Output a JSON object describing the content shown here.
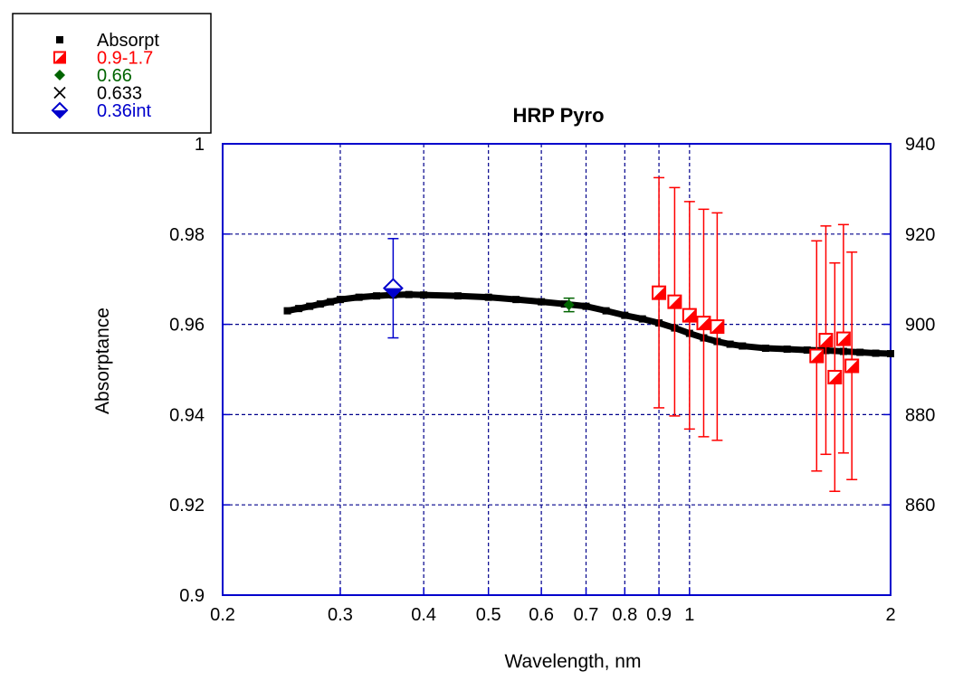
{
  "chart_data": {
    "type": "scatter",
    "title": "HRP Pyro",
    "xlabel": "Wavelength, nm",
    "ylabel": "Absorptance",
    "xscale": "log",
    "xlim": [
      0.2,
      2
    ],
    "ylim": [
      0.9,
      1
    ],
    "y2lim": [
      840,
      940
    ],
    "x_ticks": [
      "0.2",
      "0.3",
      "0.4",
      "0.5",
      "0.6",
      "0.7",
      "0.8",
      "0.9",
      "1",
      "2"
    ],
    "y_ticks": [
      "0.9",
      "0.92",
      "0.94",
      "0.96",
      "0.98",
      "1"
    ],
    "y2_ticks": [
      "860",
      "880",
      "900",
      "920",
      "940"
    ],
    "grid": true,
    "legend_position": "top-left, outside plot",
    "series": [
      {
        "name": "Absorpt",
        "color": "#000000",
        "marker": "small-square",
        "x": [
          0.25,
          0.26,
          0.27,
          0.28,
          0.29,
          0.3,
          0.32,
          0.34,
          0.36,
          0.38,
          0.4,
          0.45,
          0.5,
          0.55,
          0.6,
          0.65,
          0.7,
          0.75,
          0.8,
          0.85,
          0.9,
          0.95,
          1.0,
          1.05,
          1.1,
          1.15,
          1.2,
          1.3,
          1.4,
          1.5,
          1.6,
          1.7,
          1.8,
          1.9,
          2.0
        ],
        "y": [
          0.963,
          0.9635,
          0.964,
          0.9645,
          0.965,
          0.9655,
          0.966,
          0.9663,
          0.9665,
          0.9666,
          0.9665,
          0.9663,
          0.966,
          0.9655,
          0.965,
          0.9645,
          0.964,
          0.963,
          0.962,
          0.9612,
          0.9603,
          0.9592,
          0.958,
          0.957,
          0.9562,
          0.9556,
          0.9552,
          0.9547,
          0.9545,
          0.9543,
          0.9542,
          0.954,
          0.9538,
          0.9536,
          0.9535
        ]
      },
      {
        "name": "0.9-1.7",
        "color": "#ff0000",
        "marker": "half-filled-square",
        "x": [
          0.9,
          0.95,
          1.0,
          1.05,
          1.1,
          1.55,
          1.6,
          1.65,
          1.7,
          1.75
        ],
        "y": [
          0.967,
          0.965,
          0.962,
          0.9603,
          0.9595,
          0.953,
          0.9565,
          0.9483,
          0.9568,
          0.9508
        ],
        "err": [
          0.0255,
          0.0253,
          0.0252,
          0.0252,
          0.0252,
          0.0255,
          0.0253,
          0.0253,
          0.0253,
          0.0252
        ]
      },
      {
        "name": "0.66",
        "color": "#006400",
        "marker": "diamond",
        "x": [
          0.66
        ],
        "y": [
          0.9643
        ],
        "err": [
          0.0015
        ]
      },
      {
        "name": "0.633",
        "color": "#000000",
        "marker": "x",
        "x": [],
        "y": []
      },
      {
        "name": "0.36int",
        "color": "#0000cc",
        "marker": "half-filled-diamond",
        "x": [
          0.36
        ],
        "y": [
          0.968
        ],
        "err": [
          0.011
        ]
      }
    ]
  }
}
